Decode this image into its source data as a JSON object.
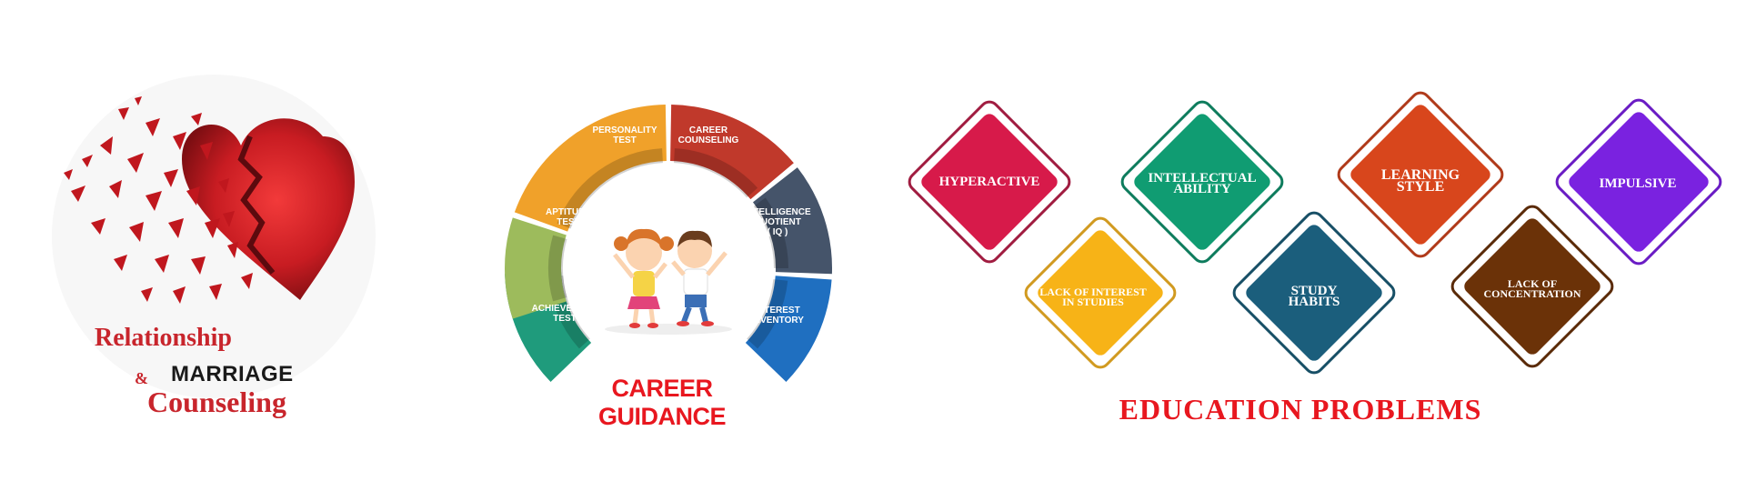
{
  "relationship": {
    "line1": "Relationship",
    "ampersand": "&",
    "line2": "MARRIAGE",
    "line3": "Counseling"
  },
  "career": {
    "title": "CAREER GUIDANCE",
    "segments": [
      {
        "line1": "PERSONALITY",
        "line2": "TEST",
        "line3": "",
        "color": "#f0a12a"
      },
      {
        "line1": "CAREER",
        "line2": "COUNSELING",
        "line3": "",
        "color": "#c0392b"
      },
      {
        "line1": "INTELLIGENCE",
        "line2": "QUOTIENT",
        "line3": "( IQ )",
        "color": "#45546a"
      },
      {
        "line1": "INTEREST",
        "line2": "INVENTORY",
        "line3": "",
        "color": "#1f6fc0"
      },
      {
        "line1": "ACHIEVEMENT",
        "line2": "TEST",
        "line3": "",
        "color": "#1f9b7c"
      },
      {
        "line1": "APTITUDE",
        "line2": "TEST",
        "line3": "",
        "color": "#9dbb5c"
      }
    ]
  },
  "education": {
    "title": "EDUCATION PROBLEMS",
    "diamonds": [
      {
        "line1": "HYPERACTIVE",
        "line2": "",
        "color": "#d71a4a",
        "border": "#a01c40"
      },
      {
        "line1": "LACK OF INTEREST",
        "line2": "IN STUDIES",
        "color": "#f7b317",
        "border": "#d19a20"
      },
      {
        "line1": "INTELLECTUAL",
        "line2": "ABILITY",
        "color": "#109c72",
        "border": "#0e7c5d"
      },
      {
        "line1": "STUDY",
        "line2": "HABITS",
        "color": "#1b5e7c",
        "border": "#174f66"
      },
      {
        "line1": "LEARNING",
        "line2": "STYLE",
        "color": "#d8461c",
        "border": "#b03a1a"
      },
      {
        "line1": "LACK OF",
        "line2": "CONCENTRATION",
        "color": "#6b3208",
        "border": "#5a2a08"
      },
      {
        "line1": "IMPULSIVE",
        "line2": "",
        "color": "#7a22e0",
        "border": "#6a1cc4"
      }
    ]
  }
}
